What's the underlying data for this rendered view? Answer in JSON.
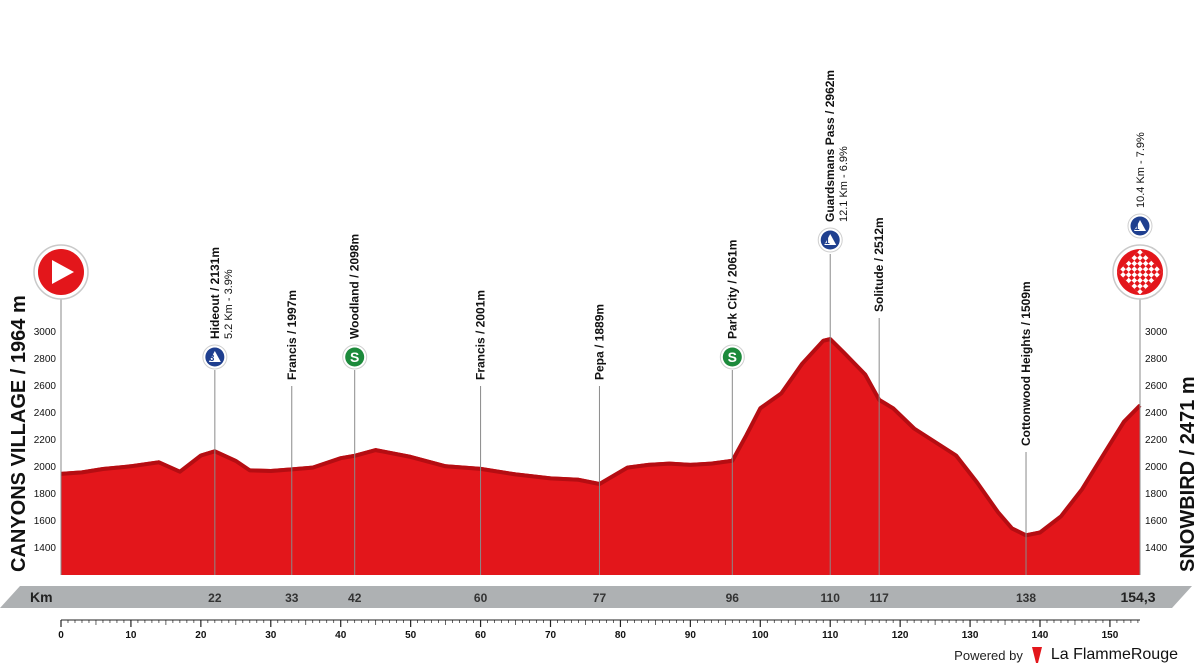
{
  "chart_data": {
    "type": "area",
    "colors": {
      "profile": "#e3161b",
      "profile_dark": "#b50d12",
      "km_band": "#aeb1b3",
      "marker_blue": "#1f3f8f",
      "marker_green": "#1c8a3b"
    },
    "x_unit": "Km",
    "x_total_label": "154,3",
    "xlim": [
      0,
      154.3
    ],
    "ylim": [
      1200,
      3000
    ],
    "y_ticks": [
      1400,
      1600,
      1800,
      2000,
      2200,
      2400,
      2600,
      2800,
      3000
    ],
    "x_axis_ticks": [
      0,
      10,
      20,
      30,
      40,
      50,
      60,
      70,
      80,
      90,
      100,
      110,
      120,
      130,
      140,
      150
    ],
    "start_label": "CANYONS VILLAGE / 1964 m",
    "finish_label": "SNOWBIRD / 2471 m",
    "profile": {
      "x": [
        0,
        3,
        6,
        10,
        14,
        17,
        20,
        22,
        25,
        27,
        30,
        33,
        36,
        40,
        42,
        45,
        50,
        55,
        60,
        65,
        70,
        74,
        77,
        81,
        84,
        87,
        90,
        93,
        96,
        98,
        100,
        103,
        106,
        109,
        110,
        112,
        115,
        117,
        119,
        122,
        125,
        128,
        131,
        134,
        136,
        138,
        140,
        143,
        146,
        149,
        152,
        154.3
      ],
      "y": [
        1964,
        1975,
        2000,
        2020,
        2050,
        1980,
        2100,
        2131,
        2060,
        1990,
        1985,
        1997,
        2010,
        2080,
        2098,
        2140,
        2090,
        2020,
        2001,
        1960,
        1930,
        1920,
        1889,
        2010,
        2030,
        2040,
        2030,
        2040,
        2061,
        2250,
        2450,
        2560,
        2780,
        2950,
        2962,
        2860,
        2700,
        2512,
        2450,
        2300,
        2200,
        2100,
        1900,
        1680,
        1560,
        1509,
        1530,
        1650,
        1850,
        2100,
        2350,
        2471
      ]
    },
    "points": [
      {
        "km": 22,
        "km_label": "22",
        "alt": 2131,
        "name": "Hideout / 2131m",
        "detail": "5.2 Km - 3.9%",
        "marker": "3",
        "marker_color": "blue"
      },
      {
        "km": 33,
        "km_label": "33",
        "alt": 1997,
        "name": "Francis / 1997m",
        "detail": "",
        "marker": "",
        "marker_color": ""
      },
      {
        "km": 42,
        "km_label": "42",
        "alt": 2098,
        "name": "Woodland / 2098m",
        "detail": "",
        "marker": "S",
        "marker_color": "green"
      },
      {
        "km": 60,
        "km_label": "60",
        "alt": 2001,
        "name": "Francis / 2001m",
        "detail": "",
        "marker": "",
        "marker_color": ""
      },
      {
        "km": 77,
        "km_label": "77",
        "alt": 1889,
        "name": "Pepa / 1889m",
        "detail": "",
        "marker": "",
        "marker_color": ""
      },
      {
        "km": 96,
        "km_label": "96",
        "alt": 2061,
        "name": "Park City / 2061m",
        "detail": "",
        "marker": "S",
        "marker_color": "green"
      },
      {
        "km": 110,
        "km_label": "110",
        "alt": 2962,
        "name": "Guardsmans Pass / 2962m",
        "detail": "12.1 Km - 6.9%",
        "marker": "1",
        "marker_color": "blue"
      },
      {
        "km": 117,
        "km_label": "117",
        "alt": 2512,
        "name": "Solitude / 2512m",
        "detail": "",
        "marker": "",
        "marker_color": ""
      },
      {
        "km": 138,
        "km_label": "138",
        "alt": 1509,
        "name": "Cottonwood Heights / 1509m",
        "detail": "",
        "marker": "",
        "marker_color": ""
      }
    ],
    "finish_climb": {
      "detail": "10.4 Km - 7.9%",
      "marker": "1"
    }
  },
  "footer": {
    "powered_by": "Powered by",
    "brand": "La FlammeRouge"
  }
}
